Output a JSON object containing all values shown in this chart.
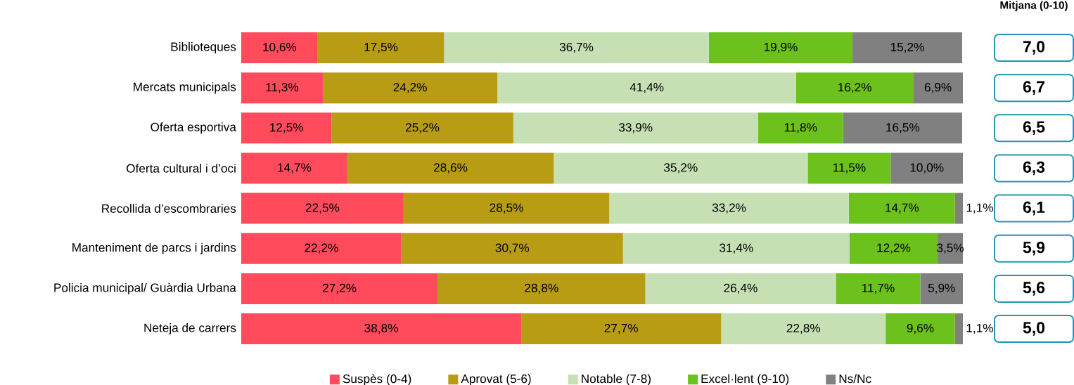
{
  "chart_data": {
    "type": "bar",
    "orientation": "horizontal",
    "stacked": true,
    "categories": [
      "Biblioteques",
      "Mercats municipals",
      "Oferta esportiva",
      "Oferta cultural i d’oci",
      "Recollida d’escombraries",
      "Manteniment de parcs i jardins",
      "Policia municipal/ Guàrdia Urbana",
      "Neteja de carrers"
    ],
    "series": [
      {
        "name": "Suspès (0-4)",
        "color": "#ff4b5c",
        "values": [
          10.6,
          11.3,
          12.5,
          14.7,
          22.5,
          22.2,
          27.2,
          38.8
        ],
        "value_labels": [
          "10,6%",
          "11,3%",
          "12,5%",
          "14,7%",
          "22,5%",
          "22,2%",
          "27,2%",
          "38,8%"
        ]
      },
      {
        "name": "Aprovat (5-6)",
        "color": "#b89c14",
        "values": [
          17.5,
          24.2,
          25.2,
          28.6,
          28.5,
          30.7,
          28.8,
          27.7
        ],
        "value_labels": [
          "17,5%",
          "24,2%",
          "25,2%",
          "28,6%",
          "28,5%",
          "30,7%",
          "28,8%",
          "27,7%"
        ]
      },
      {
        "name": "Notable (7-8)",
        "color": "#c6e0b4",
        "values": [
          36.7,
          41.4,
          33.9,
          35.2,
          33.2,
          31.4,
          26.4,
          22.8
        ],
        "value_labels": [
          "36,7%",
          "41,4%",
          "33,9%",
          "35,2%",
          "33,2%",
          "31,4%",
          "26,4%",
          "22,8%"
        ]
      },
      {
        "name": "Excel·lent (9-10)",
        "color": "#6cc11c",
        "values": [
          19.9,
          16.2,
          11.8,
          11.5,
          14.7,
          12.2,
          11.7,
          9.6
        ],
        "value_labels": [
          "19,9%",
          "16,2%",
          "11,8%",
          "11,5%",
          "14,7%",
          "12,2%",
          "11,7%",
          "9,6%"
        ]
      },
      {
        "name": "Ns/Nc",
        "color": "#808080",
        "values": [
          15.2,
          6.9,
          16.5,
          10.0,
          1.1,
          3.5,
          5.9,
          1.1
        ],
        "value_labels": [
          "15,2%",
          "6,9%",
          "16,5%",
          "10,0%",
          "1,1%",
          "3,5%",
          "5,9%",
          "1,1%"
        ]
      }
    ],
    "xlim": [
      0,
      100
    ],
    "tick_labels": "y",
    "legend": "bottom",
    "annotations": [
      "Mitjana (0-10)",
      "7,0",
      "6,7",
      "6,5",
      "6,3",
      "6,1",
      "5,9",
      "5,6",
      "5,0"
    ]
  }
}
